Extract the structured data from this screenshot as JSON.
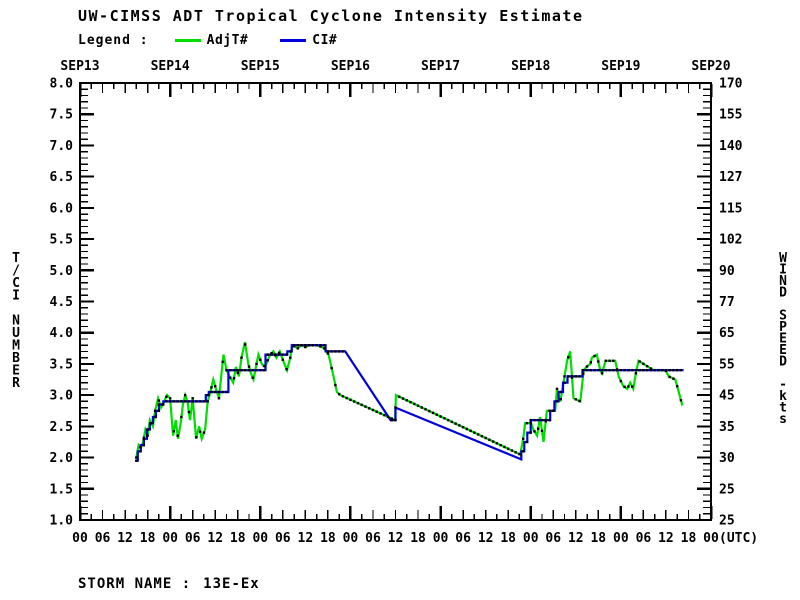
{
  "title": "UW-CIMSS ADT Tropical Cyclone Intensity Estimate",
  "legend": {
    "label": "Legend :",
    "items": [
      {
        "name": "AdjT#",
        "color": "#00dd00"
      },
      {
        "name": "CI#",
        "color": "#0000dd"
      }
    ]
  },
  "footer": {
    "label": "STORM NAME :",
    "value": "13E-Ex"
  },
  "chart_data": {
    "type": "line",
    "title": "UW-CIMSS ADT Tropical Cyclone Intensity Estimate",
    "storm_name": "13E-Ex",
    "grid": false,
    "legend_position": "top-left",
    "x_axis": {
      "description": "time in hours from SEP13 00 UTC to SEP20 00 UTC",
      "range_hours": [
        0,
        168
      ],
      "day_labels": [
        "SEP13",
        "SEP14",
        "SEP15",
        "SEP16",
        "SEP17",
        "SEP18",
        "SEP19",
        "SEP20"
      ],
      "hour_label_cycle": [
        "00",
        "06",
        "12",
        "18"
      ],
      "hour_label_step": 6,
      "minor_tick_hours": 3,
      "suffix": "(UTC)"
    },
    "y_left": {
      "label": "T/CI NUMBER",
      "min": 1.0,
      "max": 8.0,
      "tick_step": 0.5,
      "minor_tick": 0.1,
      "tick_labels": [
        "8.0",
        "7.5",
        "7.0",
        "6.5",
        "6.0",
        "5.5",
        "5.0",
        "4.5",
        "4.0",
        "3.5",
        "3.0",
        "2.5",
        "2.0",
        "1.5",
        "1.0"
      ]
    },
    "y_right": {
      "label": "WIND SPEED -kts",
      "tick_labels": [
        "170",
        "155",
        "140",
        "127",
        "115",
        "102",
        "90",
        "77",
        "65",
        "55",
        "45",
        "35",
        "30",
        "25",
        "25"
      ]
    },
    "marker_color": "#000000",
    "series": [
      {
        "name": "AdjT#",
        "color": "#00dd00",
        "points": [
          [
            15,
            2.0
          ],
          [
            15.6,
            2.2
          ],
          [
            16.2,
            2.15
          ],
          [
            16.8,
            2.25
          ],
          [
            17.4,
            2.45
          ],
          [
            18,
            2.35
          ],
          [
            18.6,
            2.6
          ],
          [
            19.4,
            2.5
          ],
          [
            20,
            2.75
          ],
          [
            20.8,
            2.95
          ],
          [
            21.6,
            2.8
          ],
          [
            22.4,
            2.9
          ],
          [
            23.2,
            3.0
          ],
          [
            24,
            2.95
          ],
          [
            24.8,
            2.35
          ],
          [
            25.5,
            2.6
          ],
          [
            26.1,
            2.3
          ],
          [
            26.8,
            2.55
          ],
          [
            27.4,
            2.85
          ],
          [
            28,
            3.0
          ],
          [
            28.6,
            2.9
          ],
          [
            29.3,
            2.6
          ],
          [
            30,
            2.95
          ],
          [
            30.9,
            2.3
          ],
          [
            31.7,
            2.5
          ],
          [
            32.4,
            2.3
          ],
          [
            33.3,
            2.45
          ],
          [
            34,
            2.9
          ],
          [
            34.7,
            3.05
          ],
          [
            35.5,
            3.25
          ],
          [
            36.2,
            3.1
          ],
          [
            37,
            2.95
          ],
          [
            37.6,
            3.3
          ],
          [
            38.2,
            3.65
          ],
          [
            39,
            3.4
          ],
          [
            39.8,
            3.3
          ],
          [
            40.8,
            3.2
          ],
          [
            41.5,
            3.45
          ],
          [
            42.3,
            3.3
          ],
          [
            43,
            3.6
          ],
          [
            43.9,
            3.85
          ],
          [
            44.8,
            3.5
          ],
          [
            45.5,
            3.35
          ],
          [
            46.2,
            3.25
          ],
          [
            47,
            3.5
          ],
          [
            47.5,
            3.65
          ],
          [
            48.4,
            3.5
          ],
          [
            49.3,
            3.45
          ],
          [
            50.6,
            3.65
          ],
          [
            51.5,
            3.7
          ],
          [
            52.3,
            3.6
          ],
          [
            53.2,
            3.7
          ],
          [
            54.1,
            3.55
          ],
          [
            55.1,
            3.4
          ],
          [
            56,
            3.6
          ],
          [
            56.5,
            3.8
          ],
          [
            58,
            3.75
          ],
          [
            59,
            3.8
          ],
          [
            60,
            3.77
          ],
          [
            61,
            3.8
          ],
          [
            63,
            3.8
          ],
          [
            64,
            3.78
          ],
          [
            65,
            3.75
          ],
          [
            66.2,
            3.65
          ],
          [
            67.5,
            3.3
          ],
          [
            68.4,
            3.05
          ],
          [
            69.3,
            3.0
          ],
          [
            82.1,
            2.65
          ],
          [
            83.9,
            2.6
          ],
          [
            84.1,
            3.0
          ],
          [
            117.2,
            2.05
          ],
          [
            118,
            2.3
          ],
          [
            118.5,
            2.55
          ],
          [
            120.1,
            2.55
          ],
          [
            120.7,
            2.45
          ],
          [
            121.7,
            2.35
          ],
          [
            122.5,
            2.65
          ],
          [
            123.4,
            2.25
          ],
          [
            124.3,
            2.75
          ],
          [
            126.5,
            2.75
          ],
          [
            127,
            3.1
          ],
          [
            127.9,
            2.9
          ],
          [
            129,
            3.3
          ],
          [
            129.7,
            3.55
          ],
          [
            130.5,
            3.7
          ],
          [
            131.4,
            2.95
          ],
          [
            133.2,
            2.9
          ],
          [
            134.1,
            3.4
          ],
          [
            134.8,
            3.45
          ],
          [
            135.9,
            3.5
          ],
          [
            136.3,
            3.6
          ],
          [
            137.6,
            3.65
          ],
          [
            138.5,
            3.4
          ],
          [
            139,
            3.35
          ],
          [
            139.9,
            3.55
          ],
          [
            142.5,
            3.55
          ],
          [
            143.4,
            3.3
          ],
          [
            144.6,
            3.15
          ],
          [
            145.7,
            3.1
          ],
          [
            146.5,
            3.2
          ],
          [
            147.3,
            3.1
          ],
          [
            148,
            3.35
          ],
          [
            148.7,
            3.55
          ],
          [
            152.7,
            3.4
          ],
          [
            155.9,
            3.4
          ],
          [
            156.7,
            3.3
          ],
          [
            158.5,
            3.25
          ],
          [
            159.2,
            3.1
          ],
          [
            160.3,
            2.85
          ]
        ]
      },
      {
        "name": "CI#",
        "color": "#0000dd",
        "points": [
          [
            15,
            1.95
          ],
          [
            15.4,
            1.95
          ],
          [
            15.4,
            2.1
          ],
          [
            16.2,
            2.1
          ],
          [
            16.2,
            2.2
          ],
          [
            17,
            2.2
          ],
          [
            17,
            2.3
          ],
          [
            17.8,
            2.3
          ],
          [
            17.8,
            2.45
          ],
          [
            18.6,
            2.45
          ],
          [
            18.6,
            2.55
          ],
          [
            19.4,
            2.55
          ],
          [
            19.4,
            2.65
          ],
          [
            20.2,
            2.65
          ],
          [
            20.2,
            2.75
          ],
          [
            21,
            2.75
          ],
          [
            21,
            2.85
          ],
          [
            22.2,
            2.85
          ],
          [
            22.2,
            2.9
          ],
          [
            33.5,
            2.9
          ],
          [
            33.5,
            3.0
          ],
          [
            34.3,
            3.0
          ],
          [
            34.3,
            3.05
          ],
          [
            39.5,
            3.05
          ],
          [
            39.5,
            3.4
          ],
          [
            49.4,
            3.4
          ],
          [
            49.4,
            3.65
          ],
          [
            55.2,
            3.65
          ],
          [
            55.2,
            3.7
          ],
          [
            56.4,
            3.7
          ],
          [
            56.4,
            3.8
          ],
          [
            65.4,
            3.8
          ],
          [
            65.4,
            3.7
          ],
          [
            70.6,
            3.7
          ],
          [
            82.7,
            2.6
          ],
          [
            84,
            2.6
          ],
          [
            84,
            2.8
          ],
          [
            117.5,
            1.97
          ],
          [
            117.5,
            2.1
          ],
          [
            118.3,
            2.1
          ],
          [
            118.3,
            2.25
          ],
          [
            119.1,
            2.25
          ],
          [
            119.1,
            2.4
          ],
          [
            120,
            2.4
          ],
          [
            120,
            2.6
          ],
          [
            125.2,
            2.6
          ],
          [
            125.2,
            2.75
          ],
          [
            126.3,
            2.75
          ],
          [
            126.3,
            2.9
          ],
          [
            127.4,
            2.9
          ],
          [
            127.4,
            3.05
          ],
          [
            128.6,
            3.05
          ],
          [
            128.6,
            3.2
          ],
          [
            129.8,
            3.2
          ],
          [
            129.8,
            3.3
          ],
          [
            133.8,
            3.3
          ],
          [
            133.8,
            3.4
          ],
          [
            160.4,
            3.4
          ]
        ]
      }
    ]
  }
}
